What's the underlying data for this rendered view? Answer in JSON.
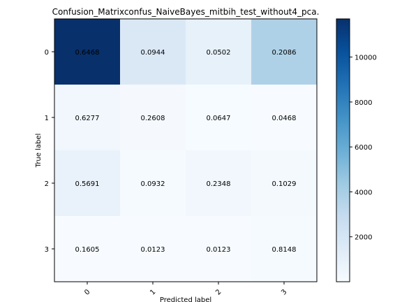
{
  "chart_data": {
    "type": "heatmap",
    "title": "Confusion_Matrixconfus_NaiveBayes_mitbih_test_without4_pca.",
    "xlabel": "Predicted label",
    "ylabel": "True label",
    "x_categories": [
      "0",
      "1",
      "2",
      "3"
    ],
    "y_categories": [
      "0",
      "1",
      "2",
      "3"
    ],
    "values": [
      [
        0.6468,
        0.0944,
        0.0502,
        0.2086
      ],
      [
        0.6277,
        0.2608,
        0.0647,
        0.0468
      ],
      [
        0.5691,
        0.0932,
        0.2348,
        0.1029
      ],
      [
        0.1605,
        0.0123,
        0.0123,
        0.8148
      ]
    ],
    "value_labels": [
      [
        "0.6468",
        "0.0944",
        "0.0502",
        "0.2086"
      ],
      [
        "0.6277",
        "0.2608",
        "0.0647",
        "0.0468"
      ],
      [
        "0.5691",
        "0.0932",
        "0.2348",
        "0.1029"
      ],
      [
        "0.1605",
        "0.0123",
        "0.0123",
        "0.8148"
      ]
    ],
    "cell_color_values": [
      [
        11700,
        1700,
        910,
        3770
      ],
      [
        350,
        145,
        36,
        26
      ],
      [
        825,
        135,
        340,
        149
      ],
      [
        26,
        2,
        2,
        132
      ]
    ],
    "colorbar": {
      "colormap": "Blues",
      "range": [
        0,
        11700
      ],
      "ticks": [
        2000,
        4000,
        6000,
        8000,
        10000
      ],
      "tick_labels": [
        "2000",
        "4000",
        "6000",
        "8000",
        "10000"
      ]
    },
    "grid": false
  }
}
